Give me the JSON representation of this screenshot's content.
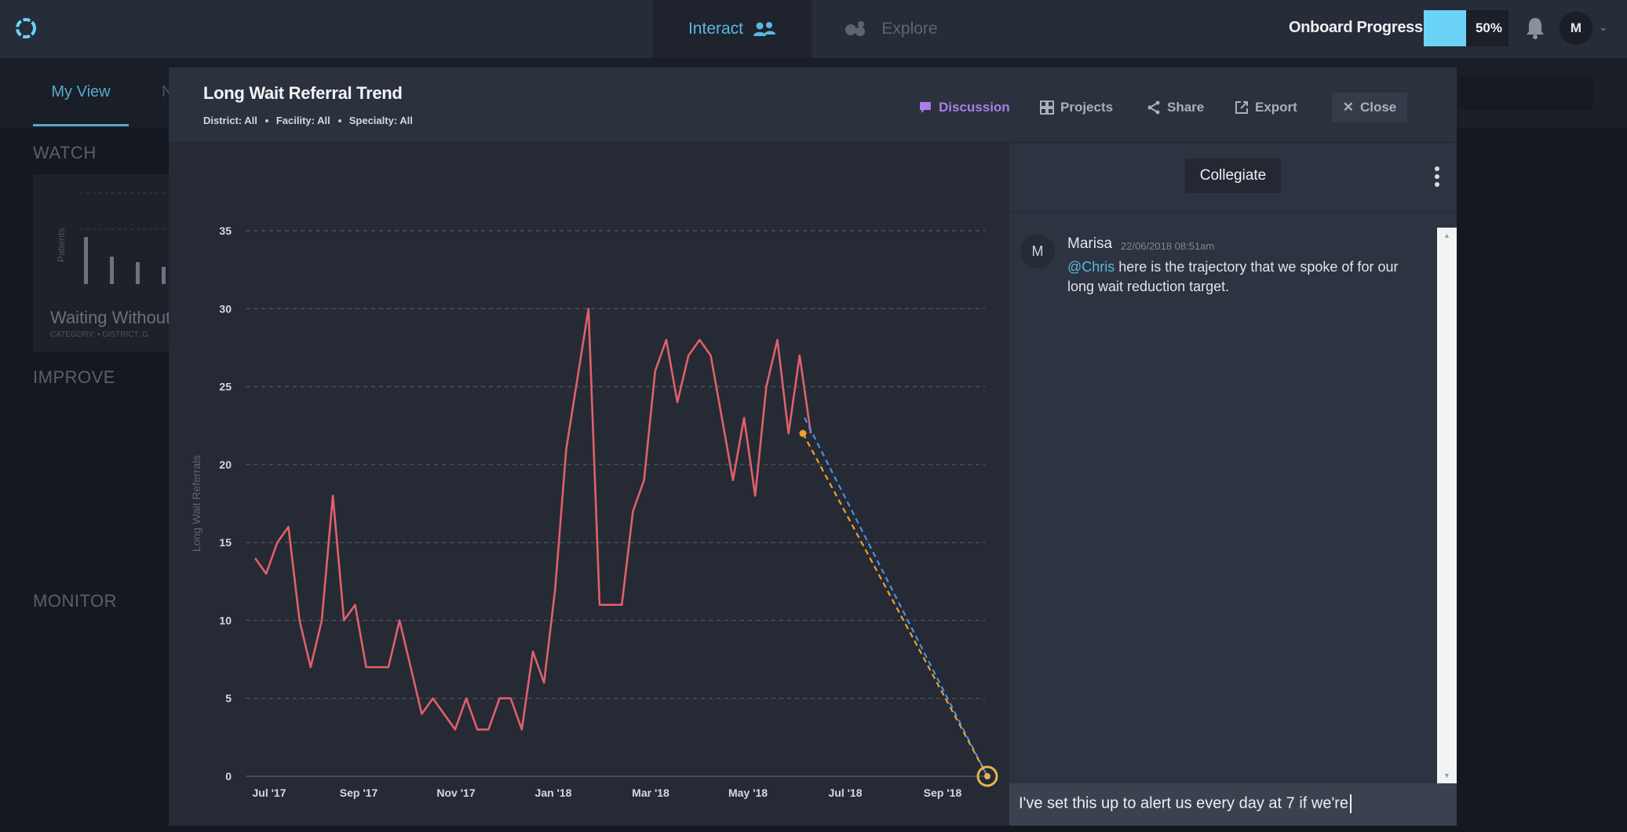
{
  "topbar": {
    "nav": [
      {
        "label": "Interact",
        "active": true,
        "icon": "users-icon"
      },
      {
        "label": "Explore",
        "active": false,
        "icon": "explore-icon"
      }
    ],
    "onboard_label": "Onboard Progress",
    "onboard_progress": 0.5,
    "onboard_percent": "50%",
    "user_initial": "M",
    "progress_color": "#6bd3f6",
    "accent_color": "#5ab8e0"
  },
  "background": {
    "active_tab": "My View",
    "sections": [
      "WATCH",
      "IMPROVE",
      "MONITOR"
    ],
    "watch_card": {
      "title": "Waiting Without",
      "meta": "CATEGORY:   •   DISTRICT: G",
      "ylabel": "Patients"
    }
  },
  "modal": {
    "title": "Long Wait Referral Trend",
    "filters": [
      "District: All",
      "Facility: All",
      "Specialty: All"
    ],
    "actions": {
      "discussion": "Discussion",
      "projects": "Projects",
      "share": "Share",
      "export": "Export",
      "close": "Close"
    },
    "panel": {
      "group_label": "Collegiate",
      "messages": [
        {
          "initial": "M",
          "author": "Marisa",
          "time": "22/06/2018 08:51am",
          "mention": "@Chris",
          "text": " here is the trajectory that we spoke of for our long wait reduction target."
        }
      ],
      "composer_text": "I've set this up to alert us every day at 7 if we're"
    }
  },
  "chart_data": {
    "type": "line",
    "title": "Long Wait Referral Trend",
    "xlabel": "",
    "ylabel": "Long Wait Referrals",
    "ylim": [
      0,
      35
    ],
    "yticks": [
      0,
      5,
      10,
      15,
      20,
      25,
      30,
      35
    ],
    "xticks": [
      "Jul '17",
      "Sep '17",
      "Nov '17",
      "Jan '18",
      "Mar '18",
      "May '18",
      "Jul '18",
      "Sep '18"
    ],
    "grid": true,
    "series_color": "#e0606a",
    "series": [
      {
        "values": [
          14,
          13,
          15,
          16,
          10,
          7,
          10,
          18,
          10,
          11,
          7,
          7,
          7,
          10,
          7,
          4,
          5,
          4,
          3,
          5,
          3,
          3,
          5,
          5,
          3,
          8,
          6,
          12,
          21,
          25.5,
          30,
          11,
          11,
          11,
          17,
          19,
          26,
          28,
          24,
          27,
          28,
          27,
          23,
          19,
          23,
          18,
          25,
          28,
          22,
          27,
          22
        ]
      }
    ],
    "trajectory": {
      "start_value": 22,
      "target_value": 0,
      "target_month": "Sep '18",
      "colors": [
        "#4a90e2",
        "#f0a030"
      ]
    }
  }
}
